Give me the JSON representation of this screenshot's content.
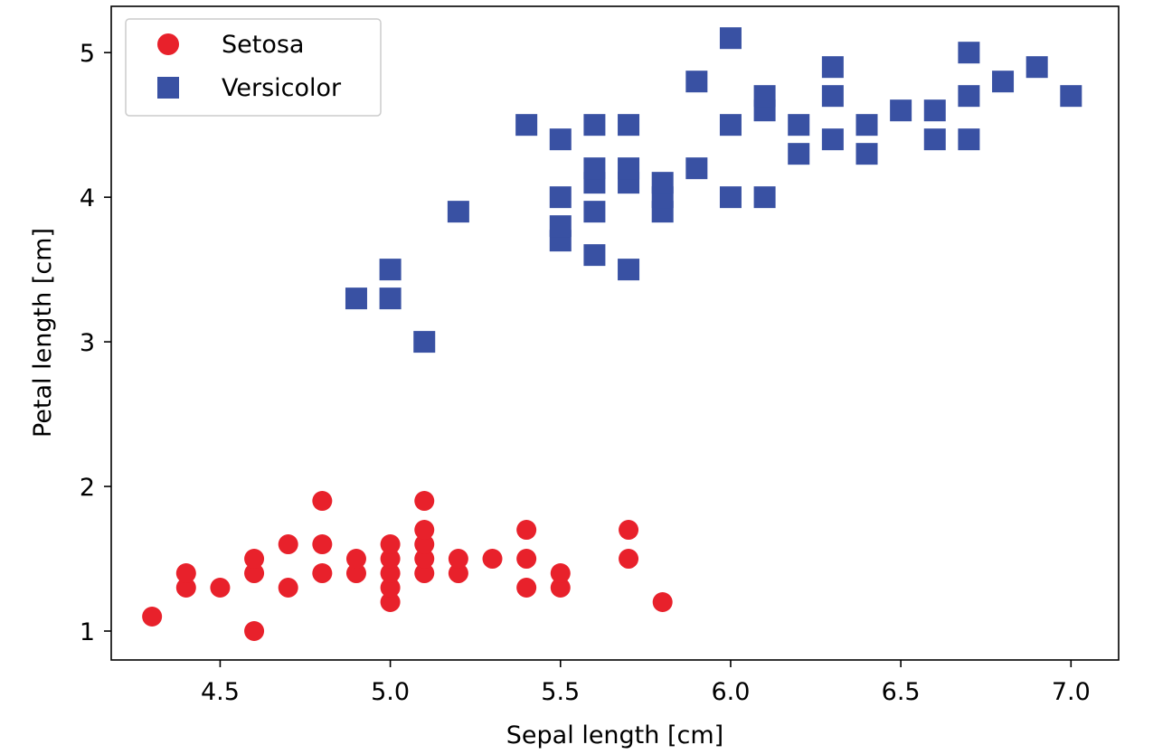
{
  "chart_data": {
    "type": "scatter",
    "title": "",
    "xlabel": "Sepal length [cm]",
    "ylabel": "Petal length [cm]",
    "xlim": [
      4.18,
      7.14
    ],
    "ylim": [
      0.8,
      5.32
    ],
    "xticks": [
      {
        "value": 4.5,
        "label": "4.5"
      },
      {
        "value": 5.0,
        "label": "5.0"
      },
      {
        "value": 5.5,
        "label": "5.5"
      },
      {
        "value": 6.0,
        "label": "6.0"
      },
      {
        "value": 6.5,
        "label": "6.5"
      },
      {
        "value": 7.0,
        "label": "7.0"
      }
    ],
    "yticks": [
      {
        "value": 1,
        "label": "1"
      },
      {
        "value": 2,
        "label": "2"
      },
      {
        "value": 3,
        "label": "3"
      },
      {
        "value": 4,
        "label": "4"
      },
      {
        "value": 5,
        "label": "5"
      }
    ],
    "grid": false,
    "legend_position": "top-left",
    "series": [
      {
        "name": "Setosa",
        "marker": "circle",
        "color": "#e8212b",
        "points": [
          [
            4.3,
            1.1
          ],
          [
            4.4,
            1.3
          ],
          [
            4.4,
            1.4
          ],
          [
            4.5,
            1.3
          ],
          [
            4.6,
            1.0
          ],
          [
            4.6,
            1.4
          ],
          [
            4.6,
            1.5
          ],
          [
            4.7,
            1.3
          ],
          [
            4.7,
            1.6
          ],
          [
            4.8,
            1.4
          ],
          [
            4.8,
            1.6
          ],
          [
            4.8,
            1.9
          ],
          [
            4.9,
            1.4
          ],
          [
            4.9,
            1.5
          ],
          [
            5.0,
            1.2
          ],
          [
            5.0,
            1.3
          ],
          [
            5.0,
            1.4
          ],
          [
            5.0,
            1.5
          ],
          [
            5.0,
            1.6
          ],
          [
            5.1,
            1.4
          ],
          [
            5.1,
            1.5
          ],
          [
            5.1,
            1.6
          ],
          [
            5.1,
            1.7
          ],
          [
            5.1,
            1.9
          ],
          [
            5.2,
            1.4
          ],
          [
            5.2,
            1.5
          ],
          [
            5.3,
            1.5
          ],
          [
            5.4,
            1.3
          ],
          [
            5.4,
            1.5
          ],
          [
            5.4,
            1.7
          ],
          [
            5.5,
            1.3
          ],
          [
            5.5,
            1.4
          ],
          [
            5.7,
            1.5
          ],
          [
            5.7,
            1.7
          ],
          [
            5.8,
            1.2
          ]
        ]
      },
      {
        "name": "Versicolor",
        "marker": "square",
        "color": "#3951a3",
        "points": [
          [
            4.9,
            3.3
          ],
          [
            5.0,
            3.3
          ],
          [
            5.0,
            3.5
          ],
          [
            5.1,
            3.0
          ],
          [
            5.2,
            3.9
          ],
          [
            5.4,
            4.5
          ],
          [
            5.5,
            3.7
          ],
          [
            5.5,
            3.8
          ],
          [
            5.5,
            4.0
          ],
          [
            5.5,
            4.4
          ],
          [
            5.6,
            3.6
          ],
          [
            5.6,
            3.9
          ],
          [
            5.6,
            4.1
          ],
          [
            5.6,
            4.2
          ],
          [
            5.6,
            4.5
          ],
          [
            5.7,
            3.5
          ],
          [
            5.7,
            4.1
          ],
          [
            5.7,
            4.2
          ],
          [
            5.7,
            4.5
          ],
          [
            5.8,
            3.9
          ],
          [
            5.8,
            4.0
          ],
          [
            5.8,
            4.1
          ],
          [
            5.9,
            4.2
          ],
          [
            5.9,
            4.8
          ],
          [
            6.0,
            4.0
          ],
          [
            6.0,
            4.5
          ],
          [
            6.0,
            5.1
          ],
          [
            6.1,
            4.0
          ],
          [
            6.1,
            4.6
          ],
          [
            6.1,
            4.7
          ],
          [
            6.2,
            4.3
          ],
          [
            6.2,
            4.5
          ],
          [
            6.3,
            4.4
          ],
          [
            6.3,
            4.7
          ],
          [
            6.3,
            4.9
          ],
          [
            6.4,
            4.3
          ],
          [
            6.4,
            4.5
          ],
          [
            6.5,
            4.6
          ],
          [
            6.6,
            4.4
          ],
          [
            6.6,
            4.6
          ],
          [
            6.7,
            4.4
          ],
          [
            6.7,
            4.7
          ],
          [
            6.7,
            5.0
          ],
          [
            6.8,
            4.8
          ],
          [
            6.9,
            4.9
          ],
          [
            7.0,
            4.7
          ]
        ]
      }
    ]
  }
}
